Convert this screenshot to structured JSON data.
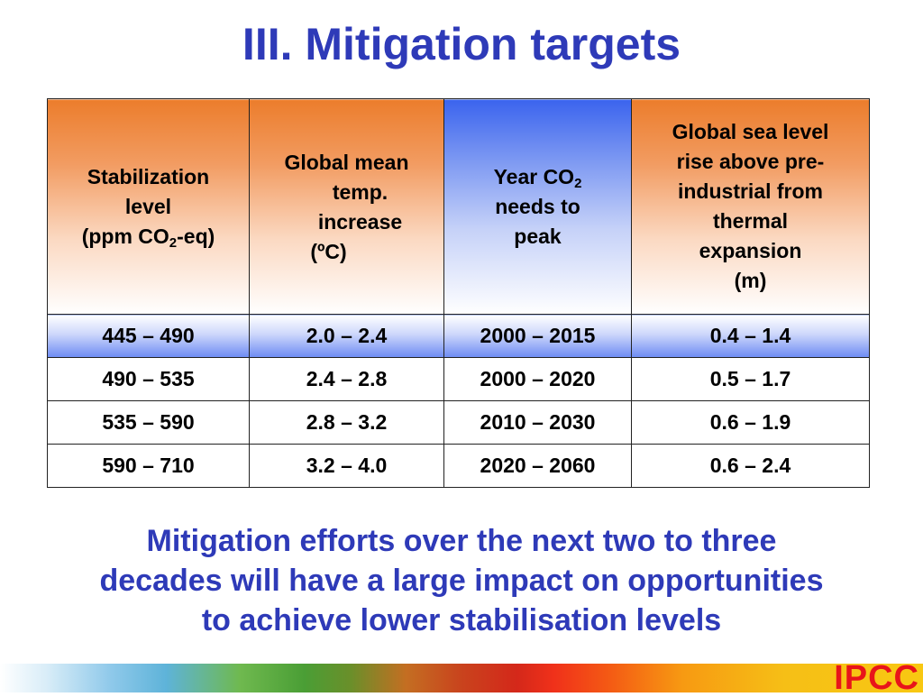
{
  "title": "III. Mitigation targets",
  "table": {
    "headers": [
      {
        "lines": [
          "Stabilization",
          "level"
        ],
        "last_prefix": "(ppm CO",
        "last_sub": "2",
        "last_suffix": "-eq)"
      },
      {
        "lines": [
          "Global mean",
          "temp.",
          "increase",
          "(ºC)"
        ]
      },
      {
        "line1_prefix": "Year CO",
        "line1_sub": "2",
        "lines": [
          "needs to",
          "peak"
        ]
      },
      {
        "lines": [
          "Global sea level",
          "rise above pre-",
          "industrial from",
          "thermal",
          "expansion",
          "(m)"
        ]
      }
    ],
    "rows": [
      [
        "445 – 490",
        "2.0 – 2.4",
        "2000 – 2015",
        "0.4 – 1.4"
      ],
      [
        "490 – 535",
        "2.4 – 2.8",
        "2000 – 2020",
        "0.5 – 1.7"
      ],
      [
        "535 – 590",
        "2.8 – 3.2",
        "2010 – 2030",
        "0.6 – 1.9"
      ],
      [
        "590 – 710",
        "3.2 – 4.0",
        "2020 – 2060",
        "0.6 – 2.4"
      ]
    ]
  },
  "summary_lines": [
    "Mitigation efforts over the next two to three",
    "decades will have a large impact on opportunities",
    "to achieve lower stabilisation levels"
  ],
  "logo": "IPCC",
  "colors": {
    "title": "#2e3ab8",
    "header_orange": "#ec7d2c",
    "header_blue": "#3b64ee",
    "logo": "#e8141a"
  }
}
